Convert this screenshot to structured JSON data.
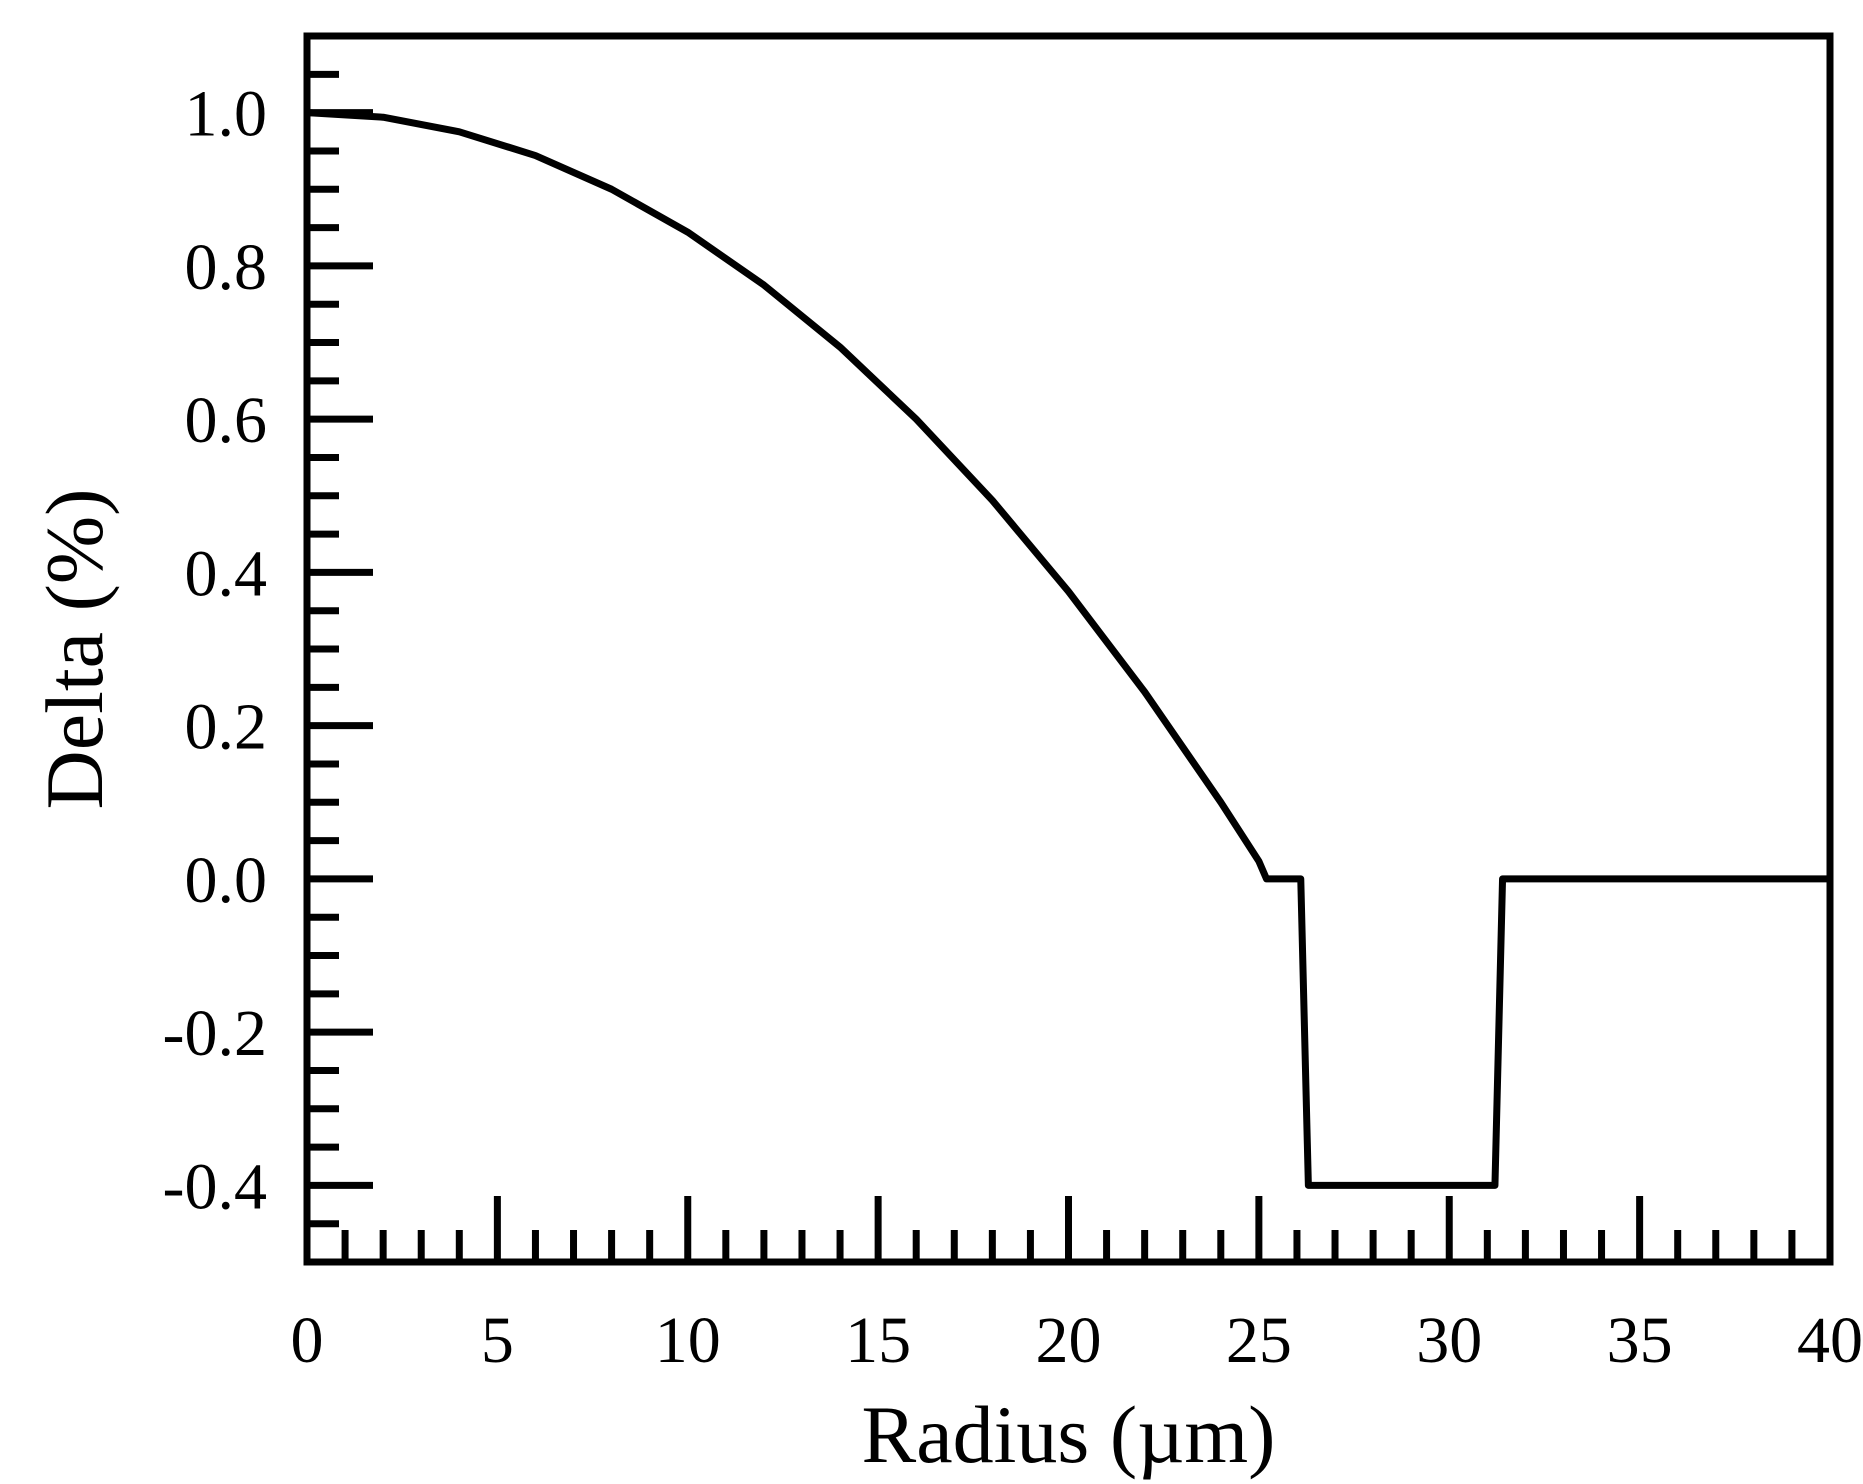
{
  "chart_data": {
    "type": "line",
    "title": "",
    "xlabel": "Radius (µm)",
    "ylabel": "Delta (%)",
    "xlim": [
      0,
      40
    ],
    "ylim": [
      -0.5,
      1.1
    ],
    "x_ticks": [
      0,
      5,
      10,
      15,
      20,
      25,
      30,
      35,
      40
    ],
    "x_tick_labels": [
      "0",
      "5",
      "10",
      "15",
      "20",
      "25",
      "30",
      "35",
      "40"
    ],
    "x_minor_step": 1,
    "y_ticks": [
      -0.4,
      -0.2,
      0.0,
      0.2,
      0.4,
      0.6,
      0.8,
      1.0
    ],
    "y_tick_labels": [
      "-0.4",
      "-0.2",
      "0.0",
      "0.2",
      "0.4",
      "0.6",
      "0.8",
      "1.0"
    ],
    "y_minor_step": 0.05,
    "grid": false,
    "legend": "none",
    "colors": {
      "line": "#000000",
      "frame": "#000000",
      "background": "#ffffff"
    },
    "series": [
      {
        "x": [
          0,
          2,
          4,
          6,
          8,
          10,
          12,
          14,
          16,
          18,
          20,
          22,
          24,
          25,
          25.2,
          26.1,
          26.3,
          31.2,
          31.4,
          40
        ],
        "y": [
          1.0,
          0.994,
          0.975,
          0.944,
          0.9,
          0.844,
          0.775,
          0.694,
          0.6,
          0.494,
          0.375,
          0.244,
          0.1,
          0.023,
          0.0,
          0.0,
          -0.4,
          -0.4,
          0.0,
          0.0
        ]
      }
    ]
  }
}
